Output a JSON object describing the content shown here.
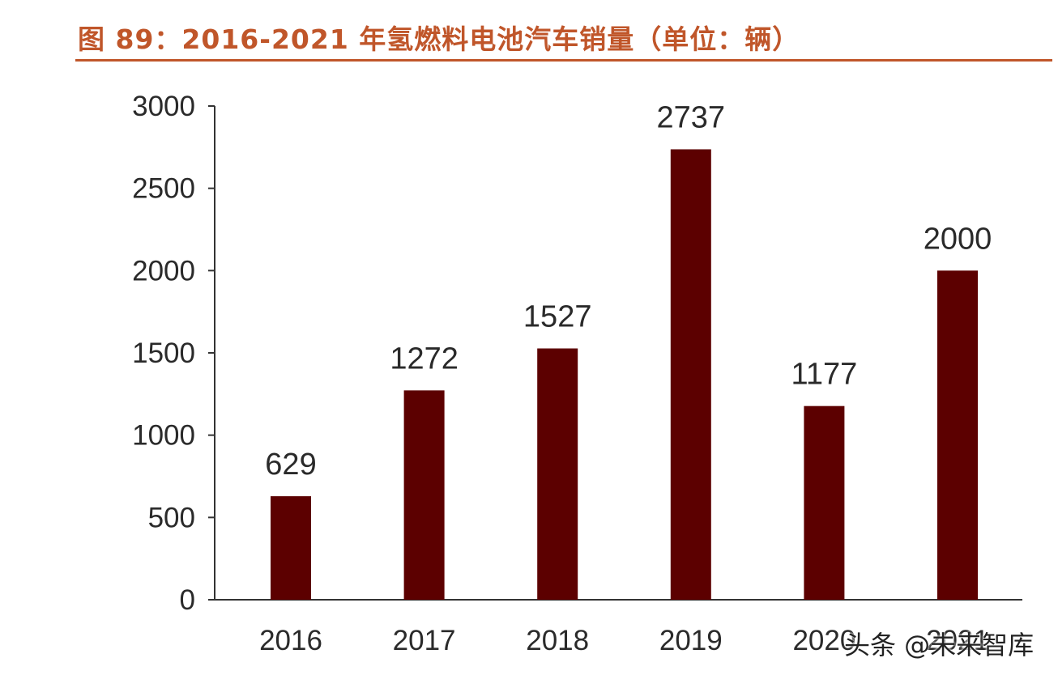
{
  "header": {
    "title": "图 89：2016-2021 年氢燃料电池汽车销量（单位：辆）"
  },
  "watermark": "头条 @未来智库",
  "colors": {
    "title": "#c0562a",
    "bar": "#5c0000",
    "axis": "#333333",
    "text": "#2a2a2a"
  },
  "chart_data": {
    "type": "bar",
    "title": "图 89：2016-2021 年氢燃料电池汽车销量（单位：辆）",
    "categories": [
      "2016",
      "2017",
      "2018",
      "2019",
      "2020",
      "2021"
    ],
    "values": [
      629,
      1272,
      1527,
      2737,
      1177,
      2000
    ],
    "data_labels": [
      "629",
      "1272",
      "1527",
      "2737",
      "1177",
      "2000"
    ],
    "y_ticks": [
      "0",
      "500",
      "1000",
      "1500",
      "2000",
      "2500",
      "3000"
    ],
    "ylim": [
      0,
      3000
    ],
    "xlabel": "",
    "ylabel": "",
    "grid": false,
    "legend": "none"
  }
}
